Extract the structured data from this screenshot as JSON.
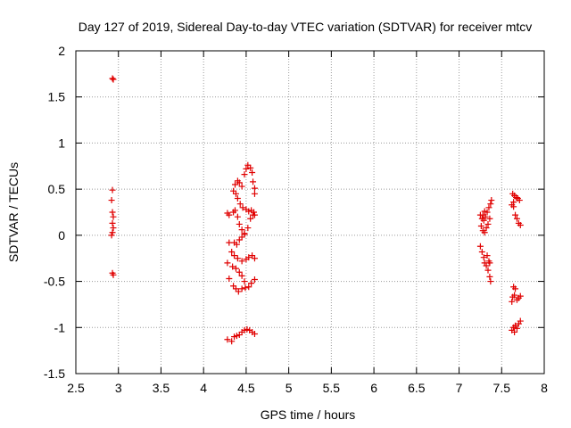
{
  "chart_data": {
    "type": "scatter",
    "title": "Day 127 of 2019, Sidereal Day-to-day VTEC variation (SDTVAR) for receiver mtcv",
    "xlabel": "GPS time / hours",
    "ylabel": "SDTVAR / TECUs",
    "xlim": [
      2.5,
      8
    ],
    "ylim": [
      -1.5,
      2
    ],
    "xticks": [
      2.5,
      3,
      3.5,
      4,
      4.5,
      5,
      5.5,
      6,
      6.5,
      7,
      7.5,
      8
    ],
    "xtick_labels": [
      "2.5",
      "3",
      "3.5",
      "4",
      "4.5",
      "5",
      "5.5",
      "6",
      "6.5",
      "7",
      "7.5",
      "8"
    ],
    "yticks": [
      -1.5,
      -1,
      -0.5,
      0,
      0.5,
      1,
      1.5,
      2
    ],
    "ytick_labels": [
      "-1.5",
      "-1",
      "-0.5",
      "0",
      "0.5",
      "1",
      "1.5",
      "2"
    ],
    "grid": true,
    "marker": "+",
    "color": "#e00000",
    "series": [
      {
        "name": "SDTVAR",
        "points": [
          [
            2.93,
            1.7
          ],
          [
            2.94,
            1.69
          ],
          [
            2.93,
            0.49
          ],
          [
            2.92,
            0.38
          ],
          [
            2.93,
            0.25
          ],
          [
            2.94,
            0.2
          ],
          [
            2.93,
            0.13
          ],
          [
            2.94,
            0.08
          ],
          [
            2.93,
            0.03
          ],
          [
            2.92,
            0.0
          ],
          [
            2.93,
            -0.41
          ],
          [
            2.94,
            -0.43
          ],
          [
            4.37,
            0.55
          ],
          [
            4.4,
            0.59
          ],
          [
            4.42,
            0.57
          ],
          [
            4.45,
            0.53
          ],
          [
            4.48,
            0.66
          ],
          [
            4.5,
            0.72
          ],
          [
            4.52,
            0.76
          ],
          [
            4.55,
            0.73
          ],
          [
            4.57,
            0.68
          ],
          [
            4.58,
            0.58
          ],
          [
            4.6,
            0.51
          ],
          [
            4.6,
            0.45
          ],
          [
            4.35,
            0.48
          ],
          [
            4.38,
            0.45
          ],
          [
            4.4,
            0.4
          ],
          [
            4.43,
            0.34
          ],
          [
            4.46,
            0.3
          ],
          [
            4.5,
            0.28
          ],
          [
            4.53,
            0.26
          ],
          [
            4.56,
            0.27
          ],
          [
            4.59,
            0.25
          ],
          [
            4.28,
            0.24
          ],
          [
            4.3,
            0.22
          ],
          [
            4.35,
            0.25
          ],
          [
            4.37,
            0.27
          ],
          [
            4.4,
            0.2
          ],
          [
            4.42,
            0.12
          ],
          [
            4.45,
            0.06
          ],
          [
            4.48,
            0.02
          ],
          [
            4.52,
            0.08
          ],
          [
            4.55,
            0.18
          ],
          [
            4.58,
            0.22
          ],
          [
            4.6,
            0.22
          ],
          [
            4.36,
            -0.08
          ],
          [
            4.39,
            -0.1
          ],
          [
            4.42,
            -0.05
          ],
          [
            4.45,
            -0.02
          ],
          [
            4.48,
            0.01
          ],
          [
            4.3,
            -0.08
          ],
          [
            4.33,
            -0.18
          ],
          [
            4.36,
            -0.22
          ],
          [
            4.4,
            -0.25
          ],
          [
            4.45,
            -0.28
          ],
          [
            4.5,
            -0.26
          ],
          [
            4.53,
            -0.24
          ],
          [
            4.57,
            -0.22
          ],
          [
            4.6,
            -0.25
          ],
          [
            4.28,
            -0.3
          ],
          [
            4.34,
            -0.34
          ],
          [
            4.38,
            -0.36
          ],
          [
            4.42,
            -0.4
          ],
          [
            4.45,
            -0.44
          ],
          [
            4.48,
            -0.5
          ],
          [
            4.3,
            -0.47
          ],
          [
            4.35,
            -0.55
          ],
          [
            4.38,
            -0.58
          ],
          [
            4.41,
            -0.61
          ],
          [
            4.45,
            -0.58
          ],
          [
            4.49,
            -0.57
          ],
          [
            4.53,
            -0.56
          ],
          [
            4.56,
            -0.52
          ],
          [
            4.6,
            -0.48
          ],
          [
            4.28,
            -1.13
          ],
          [
            4.33,
            -1.15
          ],
          [
            4.36,
            -1.1
          ],
          [
            4.39,
            -1.09
          ],
          [
            4.42,
            -1.08
          ],
          [
            4.45,
            -1.05
          ],
          [
            4.48,
            -1.03
          ],
          [
            4.51,
            -1.02
          ],
          [
            4.54,
            -1.03
          ],
          [
            4.57,
            -1.05
          ],
          [
            4.6,
            -1.07
          ],
          [
            7.25,
            0.22
          ],
          [
            7.27,
            0.18
          ],
          [
            7.29,
            0.16
          ],
          [
            7.31,
            0.2
          ],
          [
            7.33,
            0.25
          ],
          [
            7.35,
            0.3
          ],
          [
            7.37,
            0.34
          ],
          [
            7.38,
            0.38
          ],
          [
            7.26,
            0.1
          ],
          [
            7.28,
            0.05
          ],
          [
            7.3,
            0.03
          ],
          [
            7.32,
            0.08
          ],
          [
            7.34,
            0.12
          ],
          [
            7.36,
            0.18
          ],
          [
            7.28,
            0.22
          ],
          [
            7.3,
            0.26
          ],
          [
            7.25,
            -0.12
          ],
          [
            7.27,
            -0.18
          ],
          [
            7.29,
            -0.24
          ],
          [
            7.3,
            -0.3
          ],
          [
            7.32,
            -0.33
          ],
          [
            7.34,
            -0.38
          ],
          [
            7.36,
            -0.45
          ],
          [
            7.37,
            -0.5
          ],
          [
            7.33,
            -0.22
          ],
          [
            7.35,
            -0.28
          ],
          [
            7.36,
            -0.3
          ],
          [
            7.63,
            0.45
          ],
          [
            7.65,
            0.43
          ],
          [
            7.67,
            0.41
          ],
          [
            7.69,
            0.4
          ],
          [
            7.71,
            0.38
          ],
          [
            7.64,
            0.36
          ],
          [
            7.62,
            0.33
          ],
          [
            7.64,
            0.31
          ],
          [
            7.66,
            0.22
          ],
          [
            7.68,
            0.18
          ],
          [
            7.7,
            0.13
          ],
          [
            7.72,
            0.11
          ],
          [
            7.64,
            -0.56
          ],
          [
            7.66,
            -0.58
          ],
          [
            7.63,
            -0.67
          ],
          [
            7.65,
            -0.65
          ],
          [
            7.62,
            -0.72
          ],
          [
            7.68,
            -0.7
          ],
          [
            7.7,
            -0.68
          ],
          [
            7.72,
            -0.66
          ],
          [
            7.62,
            -1.03
          ],
          [
            7.64,
            -1.0
          ],
          [
            7.66,
            -0.98
          ],
          [
            7.68,
            -1.01
          ],
          [
            7.7,
            -0.96
          ],
          [
            7.72,
            -0.93
          ],
          [
            7.65,
            -1.05
          ]
        ]
      }
    ]
  }
}
